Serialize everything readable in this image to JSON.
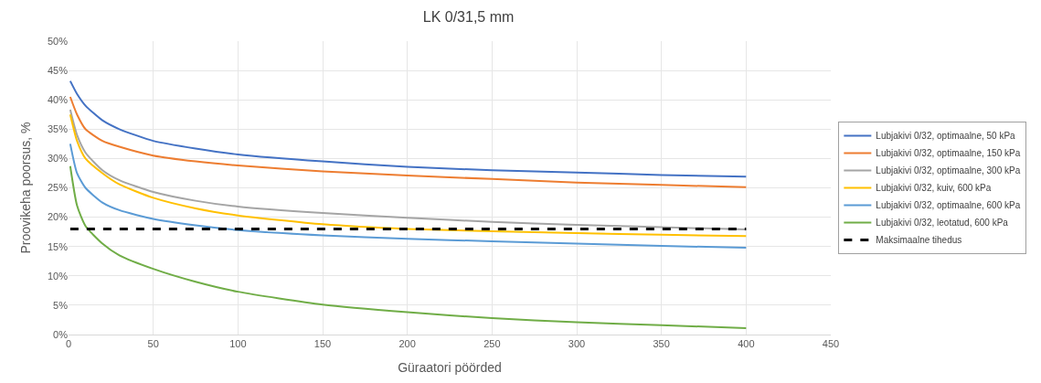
{
  "chart_data": {
    "type": "line",
    "title": "LK 0/31,5 mm",
    "xlabel": "Güraatori pöörded",
    "ylabel": "Proovikeha poorsus, %",
    "x": [
      1,
      5,
      10,
      20,
      30,
      50,
      75,
      100,
      150,
      200,
      250,
      300,
      350,
      400
    ],
    "series": [
      {
        "name": "Lubjakivi 0/32, optimaalne, 50 kPa",
        "color": "#4472c4",
        "values": [
          43.2,
          41.0,
          39.0,
          36.5,
          35.0,
          33.0,
          31.7,
          30.7,
          29.5,
          28.6,
          28.0,
          27.6,
          27.2,
          26.9
        ]
      },
      {
        "name": "Lubjakivi 0/32, optimaalne, 150 kPa",
        "color": "#ed7d31",
        "values": [
          40.5,
          37.5,
          35.0,
          33.0,
          32.0,
          30.5,
          29.5,
          28.8,
          27.8,
          27.1,
          26.5,
          25.9,
          25.5,
          25.1
        ]
      },
      {
        "name": "Lubjakivi 0/32, optimaalne, 300 kPa",
        "color": "#a5a5a5",
        "values": [
          38.3,
          34.0,
          31.0,
          28.0,
          26.3,
          24.3,
          22.8,
          21.8,
          20.7,
          19.9,
          19.2,
          18.7,
          18.3,
          17.9
        ]
      },
      {
        "name": "Lubjakivi 0/32, kuiv, 600 kPa",
        "color": "#ffc000",
        "values": [
          37.5,
          33.0,
          30.0,
          27.5,
          25.6,
          23.3,
          21.5,
          20.3,
          18.8,
          18.0,
          17.6,
          17.3,
          17.0,
          16.8
        ]
      },
      {
        "name": "Lubjakivi 0/32, optimaalne, 600 kPa",
        "color": "#5b9bd5",
        "values": [
          32.5,
          27.5,
          25.0,
          22.5,
          21.2,
          19.7,
          18.6,
          17.8,
          16.9,
          16.3,
          15.9,
          15.5,
          15.1,
          14.8
        ]
      },
      {
        "name": "Lubjakivi 0/32, leotatud, 600 kPa",
        "color": "#70ad47",
        "values": [
          28.7,
          22.0,
          18.5,
          15.5,
          13.5,
          11.2,
          9.0,
          7.3,
          5.1,
          3.8,
          2.8,
          2.1,
          1.6,
          1.1
        ]
      },
      {
        "name": "Maksimaalne tihedus",
        "color": "#000000",
        "line_style": "dashed",
        "x": [
          1,
          400
        ],
        "values": [
          18,
          18
        ]
      }
    ],
    "xlim": [
      0,
      450
    ],
    "xticks": [
      0,
      50,
      100,
      150,
      200,
      250,
      300,
      350,
      400,
      450
    ],
    "ylim": [
      0,
      50
    ],
    "yticks": [
      {
        "value": 0,
        "label": "0%"
      },
      {
        "value": 5,
        "label": "5%"
      },
      {
        "value": 10,
        "label": "10%"
      },
      {
        "value": 15,
        "label": "15%"
      },
      {
        "value": 20,
        "label": "20%"
      },
      {
        "value": 25,
        "label": "25%"
      },
      {
        "value": 30,
        "label": "30%"
      },
      {
        "value": 35,
        "label": "35%"
      },
      {
        "value": 40,
        "label": "40%"
      },
      {
        "value": 45,
        "label": "45%"
      },
      {
        "value": 50,
        "label": "50%"
      }
    ],
    "grid": true,
    "legend": "right",
    "marker": "none"
  }
}
